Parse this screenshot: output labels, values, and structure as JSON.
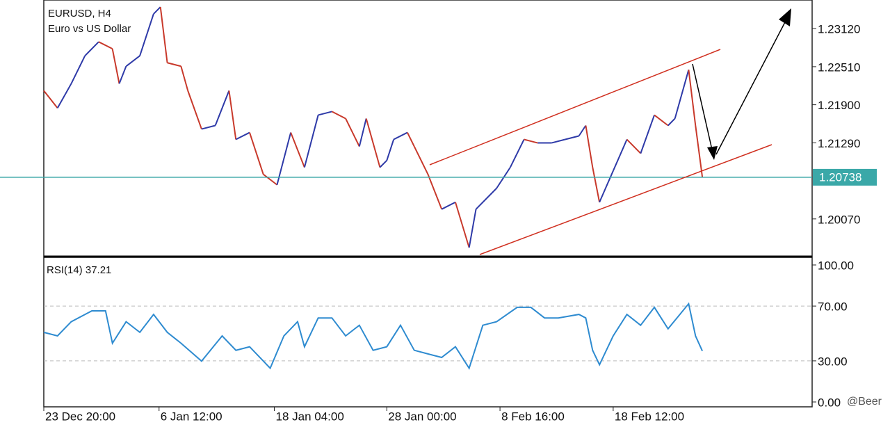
{
  "chart_data": [
    {
      "type": "price",
      "title": "EURUSD, H4",
      "subtitle": "Euro vs US Dollar",
      "x": [
        0,
        2,
        4,
        6,
        8,
        10,
        11,
        12,
        14,
        16,
        17,
        18,
        20,
        21,
        23,
        25,
        27,
        28,
        30,
        32,
        34,
        36,
        38,
        40,
        42,
        44,
        46,
        47,
        49,
        50,
        51,
        53,
        54,
        56,
        58,
        60,
        62,
        63,
        66,
        68,
        70,
        72,
        74,
        76,
        78,
        79,
        80,
        81,
        83,
        85,
        87,
        89,
        91,
        92,
        94,
        95,
        96
      ],
      "values": [
        1.22126,
        1.21847,
        1.22238,
        1.22685,
        1.22908,
        1.22797,
        1.22238,
        1.22517,
        1.22685,
        1.23355,
        1.23467,
        1.22573,
        1.22517,
        1.22126,
        1.21511,
        1.21567,
        1.22126,
        1.21344,
        1.21455,
        1.20785,
        1.20617,
        1.21455,
        1.20897,
        1.21735,
        1.21791,
        1.21679,
        1.21232,
        1.21679,
        1.20897,
        1.21008,
        1.21344,
        1.21455,
        1.21232,
        1.20785,
        1.20226,
        1.20338,
        1.19611,
        1.20226,
        1.20561,
        1.20897,
        1.21344,
        1.21288,
        1.21288,
        1.21344,
        1.214,
        1.21567,
        1.20897,
        1.20338,
        1.20841,
        1.21344,
        1.2112,
        1.21735,
        1.21567,
        1.21679,
        1.22461,
        1.21567,
        1.20738
      ],
      "up_color": "#2e3aa8",
      "down_color": "#c8392b",
      "xlim": [
        0,
        112
      ],
      "ylim": [
        1.19466,
        1.23579
      ],
      "yticks": [
        {
          "value": 1.2312,
          "label": "1.23120"
        },
        {
          "value": 1.2251,
          "label": "1.22510"
        },
        {
          "value": 1.219,
          "label": "1.21900"
        },
        {
          "value": 1.2129,
          "label": "1.21290"
        },
        {
          "value": 1.2007,
          "label": "1.20070"
        }
      ],
      "last_price": 1.20738,
      "last_price_color": "#3aa8a8"
    },
    {
      "type": "line",
      "title": "RSI(14) 37.21",
      "x": [
        0,
        2,
        4,
        7,
        9,
        10,
        12,
        14,
        16,
        18,
        20,
        23,
        26,
        28,
        30,
        33,
        35,
        37,
        38,
        40,
        42,
        44,
        46,
        48,
        50,
        52,
        54,
        56,
        58,
        60,
        62,
        64,
        66,
        69,
        71,
        73,
        75,
        78,
        79,
        80,
        81,
        83,
        85,
        87,
        89,
        91,
        94,
        95,
        96
      ],
      "values": [
        50.8,
        48.2,
        58.6,
        66.5,
        66.5,
        42.9,
        58.6,
        50.8,
        63.9,
        50.8,
        42.9,
        29.8,
        48.2,
        37.7,
        40.3,
        24.6,
        48.2,
        58.6,
        40.3,
        61.3,
        61.3,
        48.2,
        56,
        37.7,
        40.3,
        56,
        37.7,
        35.1,
        32.5,
        40.3,
        24.6,
        56,
        58.6,
        69.1,
        69.1,
        61.3,
        61.3,
        63.9,
        61.3,
        37.7,
        27.2,
        48.2,
        63.9,
        56,
        69.1,
        53.4,
        71.7,
        48.2,
        37.21
      ],
      "color": "#2e8bd0",
      "xlim": [
        0,
        112
      ],
      "ylim": [
        0,
        100
      ],
      "yticks": [
        {
          "value": 100,
          "label": "100.00"
        },
        {
          "value": 70,
          "label": "70.00"
        },
        {
          "value": 30,
          "label": "30.00"
        },
        {
          "value": 0,
          "label": "0.00"
        }
      ],
      "xticks": [
        {
          "value": 0,
          "label": "23 Dec 20:00"
        },
        {
          "value": 16.8,
          "label": "6 Jan 12:00"
        },
        {
          "value": 33.6,
          "label": "18 Jan 04:00"
        },
        {
          "value": 50,
          "label": "28 Jan 00:00"
        },
        {
          "value": 66.5,
          "label": "8 Feb 16:00"
        },
        {
          "value": 83,
          "label": "18 Feb 12:00"
        }
      ]
    }
  ],
  "watermark": "@Beer"
}
